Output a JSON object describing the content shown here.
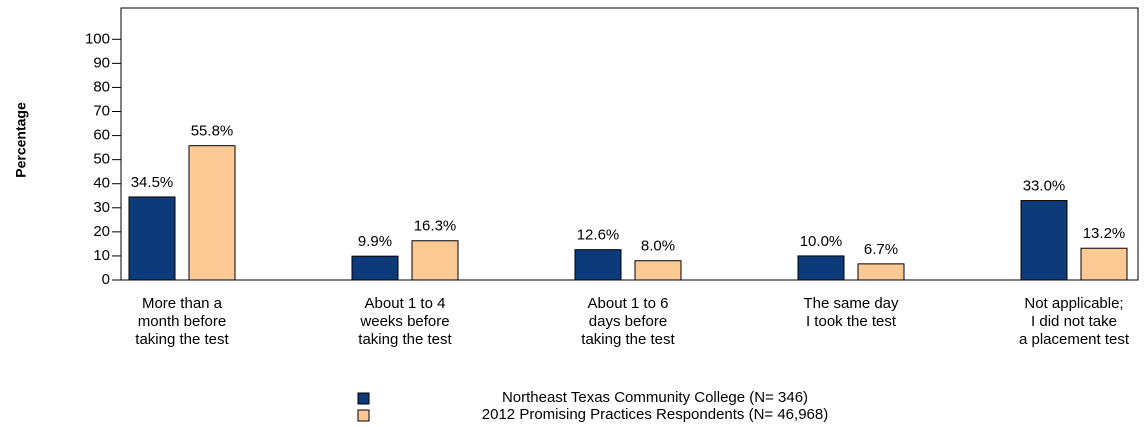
{
  "chart_data": {
    "type": "bar",
    "y_label": "Percentage",
    "categories": [
      [
        "More than a",
        "month before",
        "taking the test"
      ],
      [
        "About 1 to 4",
        "weeks before",
        "taking the test"
      ],
      [
        "About 1 to 6",
        "days before",
        "taking the test"
      ],
      [
        "The same day",
        "I took the test"
      ],
      [
        "Not applicable;",
        "I did not take",
        "a placement test"
      ]
    ],
    "series": [
      {
        "name": "Northeast Texas Community College  (N= 346)",
        "color": "#0d3a78",
        "values": [
          34.5,
          9.9,
          12.6,
          10.0,
          33.0
        ],
        "value_labels": [
          "34.5%",
          "9.9%",
          "12.6%",
          "10.0%",
          "33.0%"
        ]
      },
      {
        "name": "2012 Promising Practices Respondents (N= 46,968)",
        "color": "#fcc994",
        "values": [
          55.8,
          16.3,
          8.0,
          6.7,
          13.2
        ],
        "value_labels": [
          "55.8%",
          "16.3%",
          "8.0%",
          "6.7%",
          "13.2%"
        ]
      }
    ],
    "ylim": [
      0,
      113
    ],
    "yticks": [
      0,
      10,
      20,
      30,
      40,
      50,
      60,
      70,
      80,
      90,
      100
    ],
    "grid": false
  }
}
